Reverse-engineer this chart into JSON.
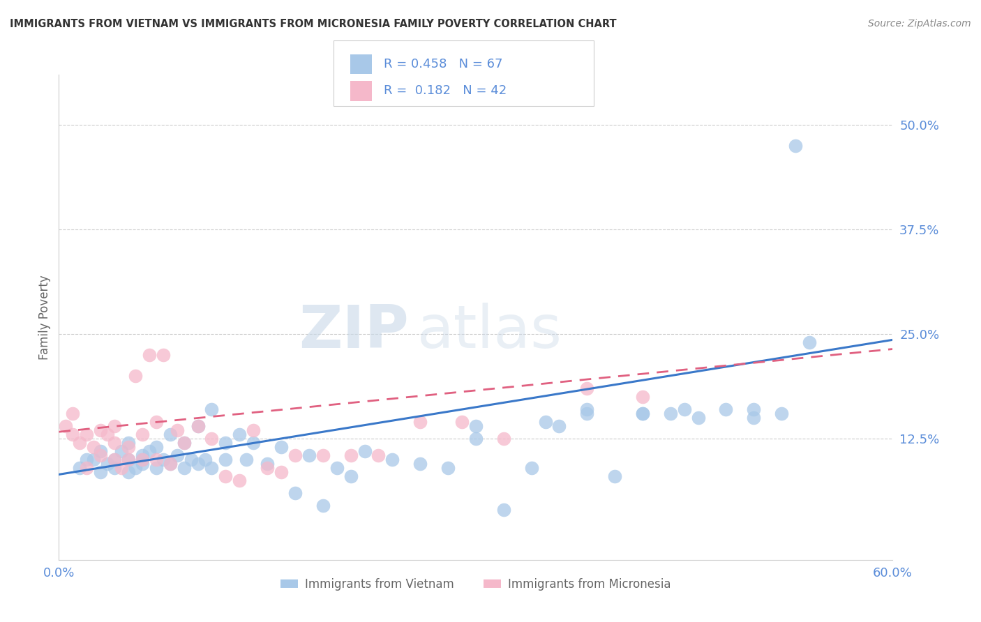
{
  "title": "IMMIGRANTS FROM VIETNAM VS IMMIGRANTS FROM MICRONESIA FAMILY POVERTY CORRELATION CHART",
  "source": "Source: ZipAtlas.com",
  "ylabel": "Family Poverty",
  "ytick_values": [
    0.125,
    0.25,
    0.375,
    0.5
  ],
  "ytick_labels": [
    "12.5%",
    "25.0%",
    "37.5%",
    "50.0%"
  ],
  "xlim": [
    0.0,
    0.6
  ],
  "ylim": [
    -0.02,
    0.56
  ],
  "watermark_zip": "ZIP",
  "watermark_atlas": "atlas",
  "legend_R_vn": "0.458",
  "legend_N_vn": "67",
  "legend_R_mc": "0.182",
  "legend_N_mc": "42",
  "vn_color": "#a8c8e8",
  "vn_line_color": "#3a78c9",
  "mc_color": "#f5b8ca",
  "mc_line_color": "#e06080",
  "background_color": "#ffffff",
  "grid_color": "#cccccc",
  "title_color": "#333333",
  "title_fontsize": 10.5,
  "axis_label_color": "#666666",
  "tick_color": "#5b8dd9",
  "source_color": "#888888",
  "vn_line_start_y": 0.082,
  "vn_line_end_y": 0.243,
  "mc_line_start_y": 0.133,
  "mc_line_end_y": 0.232,
  "series_vietnam_x": [
    0.015,
    0.02,
    0.025,
    0.03,
    0.03,
    0.035,
    0.04,
    0.04,
    0.045,
    0.05,
    0.05,
    0.05,
    0.055,
    0.06,
    0.06,
    0.06,
    0.065,
    0.07,
    0.07,
    0.075,
    0.08,
    0.08,
    0.085,
    0.09,
    0.09,
    0.095,
    0.1,
    0.1,
    0.105,
    0.11,
    0.11,
    0.12,
    0.12,
    0.13,
    0.135,
    0.14,
    0.15,
    0.16,
    0.17,
    0.18,
    0.19,
    0.2,
    0.21,
    0.22,
    0.24,
    0.26,
    0.28,
    0.3,
    0.32,
    0.34,
    0.36,
    0.38,
    0.4,
    0.42,
    0.44,
    0.46,
    0.48,
    0.5,
    0.52,
    0.54,
    0.3,
    0.35,
    0.38,
    0.42,
    0.45,
    0.5,
    0.53
  ],
  "series_vietnam_y": [
    0.09,
    0.1,
    0.1,
    0.085,
    0.11,
    0.095,
    0.1,
    0.09,
    0.11,
    0.1,
    0.085,
    0.12,
    0.09,
    0.095,
    0.1,
    0.105,
    0.11,
    0.09,
    0.115,
    0.1,
    0.095,
    0.13,
    0.105,
    0.09,
    0.12,
    0.1,
    0.095,
    0.14,
    0.1,
    0.09,
    0.16,
    0.1,
    0.12,
    0.13,
    0.1,
    0.12,
    0.095,
    0.115,
    0.06,
    0.105,
    0.045,
    0.09,
    0.08,
    0.11,
    0.1,
    0.095,
    0.09,
    0.125,
    0.04,
    0.09,
    0.14,
    0.16,
    0.08,
    0.155,
    0.155,
    0.15,
    0.16,
    0.15,
    0.155,
    0.24,
    0.14,
    0.145,
    0.155,
    0.155,
    0.16,
    0.16,
    0.475
  ],
  "series_micronesia_x": [
    0.005,
    0.01,
    0.01,
    0.015,
    0.02,
    0.02,
    0.025,
    0.03,
    0.03,
    0.035,
    0.04,
    0.04,
    0.04,
    0.045,
    0.05,
    0.05,
    0.055,
    0.06,
    0.06,
    0.065,
    0.07,
    0.07,
    0.075,
    0.08,
    0.085,
    0.09,
    0.1,
    0.11,
    0.12,
    0.13,
    0.14,
    0.15,
    0.16,
    0.17,
    0.19,
    0.21,
    0.23,
    0.26,
    0.29,
    0.32,
    0.38,
    0.42
  ],
  "series_micronesia_y": [
    0.14,
    0.13,
    0.155,
    0.12,
    0.09,
    0.13,
    0.115,
    0.105,
    0.135,
    0.13,
    0.1,
    0.12,
    0.14,
    0.09,
    0.1,
    0.115,
    0.2,
    0.1,
    0.13,
    0.225,
    0.1,
    0.145,
    0.225,
    0.095,
    0.135,
    0.12,
    0.14,
    0.125,
    0.08,
    0.075,
    0.135,
    0.09,
    0.085,
    0.105,
    0.105,
    0.105,
    0.105,
    0.145,
    0.145,
    0.125,
    0.185,
    0.175
  ]
}
